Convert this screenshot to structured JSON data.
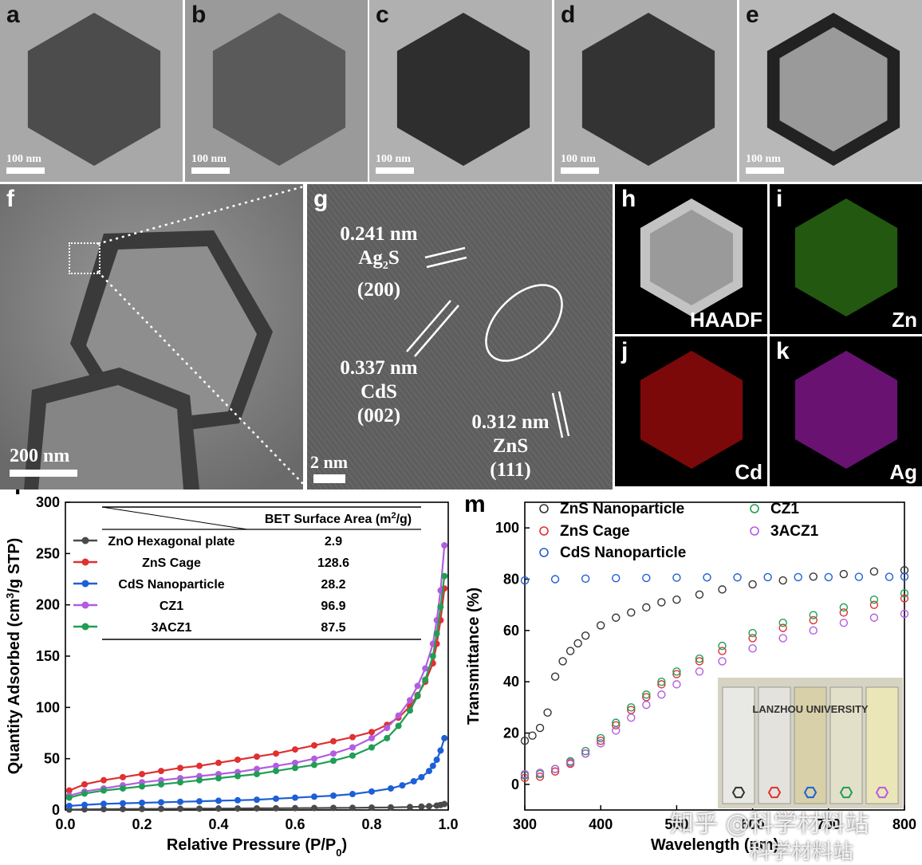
{
  "tem_panels": [
    {
      "letter": "a",
      "scale": "100 nm"
    },
    {
      "letter": "b",
      "scale": "100 nm"
    },
    {
      "letter": "c",
      "scale": "100 nm"
    },
    {
      "letter": "d",
      "scale": "100 nm"
    },
    {
      "letter": "e",
      "scale": "100 nm"
    }
  ],
  "panel_f": {
    "letter": "f",
    "scale": "200 nm"
  },
  "panel_g": {
    "letter": "g",
    "scale": "2 nm",
    "labels": [
      {
        "d": "0.241 nm",
        "phase": "Ag",
        "sub": "2",
        "phase_tail": "S",
        "plane": "(200)"
      },
      {
        "d": "0.337 nm",
        "phase": "CdS",
        "plane": "(002)"
      },
      {
        "d": "0.312 nm",
        "phase": "ZnS",
        "plane": "(111)"
      }
    ]
  },
  "eds_maps": [
    {
      "letter": "h",
      "name": "HAADF",
      "color": "#d8d8d8"
    },
    {
      "letter": "i",
      "name": "Zn",
      "color": "#3fa01e"
    },
    {
      "letter": "j",
      "name": "Cd",
      "color": "#e01010"
    },
    {
      "letter": "k",
      "name": "Ag",
      "color": "#c020d0"
    }
  ],
  "watermark": {
    "line1": "知乎 @科学材料站",
    "line2": "科学材料站"
  },
  "chart_data": [
    {
      "panel": "l",
      "type": "line",
      "xlabel": "Relative Pressure (P/P",
      "xlabel_sub": "0",
      "xlabel_tail": ")",
      "ylabel": "Quantity Adsorbed (cm",
      "ylabel_sup": "3",
      "ylabel_tail": "/g STP)",
      "xlim": [
        0.0,
        1.0
      ],
      "ylim": [
        0,
        300
      ],
      "xticks": [
        "0.0",
        "0.2",
        "0.4",
        "0.6",
        "0.8",
        "1.0"
      ],
      "yticks": [
        "0",
        "50",
        "100",
        "150",
        "200",
        "250",
        "300"
      ],
      "table_header": "BET Surface Area (m",
      "table_header_sup": "2",
      "table_header_tail": "/g)",
      "series": [
        {
          "name": "ZnO Hexagonal plate",
          "bet": "2.9",
          "color": "#4a4a4a",
          "x": [
            0.01,
            0.05,
            0.1,
            0.15,
            0.2,
            0.25,
            0.3,
            0.35,
            0.4,
            0.45,
            0.5,
            0.55,
            0.6,
            0.65,
            0.7,
            0.75,
            0.8,
            0.85,
            0.9,
            0.93,
            0.95,
            0.97,
            0.98,
            0.99
          ],
          "y": [
            0.4,
            0.6,
            0.8,
            0.9,
            1.0,
            1.1,
            1.2,
            1.3,
            1.4,
            1.5,
            1.6,
            1.7,
            1.8,
            1.9,
            2.0,
            2.1,
            2.3,
            2.5,
            2.9,
            3.3,
            3.7,
            4.3,
            4.9,
            5.8
          ]
        },
        {
          "name": "ZnS Cage",
          "bet": "128.6",
          "color": "#e03030",
          "x": [
            0.01,
            0.05,
            0.1,
            0.15,
            0.2,
            0.25,
            0.3,
            0.35,
            0.4,
            0.45,
            0.5,
            0.55,
            0.6,
            0.65,
            0.7,
            0.75,
            0.8,
            0.84,
            0.87,
            0.9,
            0.92,
            0.94,
            0.96,
            0.97,
            0.98,
            0.99
          ],
          "y": [
            19,
            25,
            29,
            32,
            35,
            38,
            41,
            43,
            46,
            49,
            52,
            55,
            59,
            63,
            67,
            71,
            76,
            83,
            90,
            101,
            112,
            125,
            143,
            162,
            185,
            216
          ]
        },
        {
          "name": "CdS Nanoparticle",
          "bet": "28.2",
          "color": "#1d5fd6",
          "x": [
            0.01,
            0.05,
            0.1,
            0.15,
            0.2,
            0.25,
            0.3,
            0.35,
            0.4,
            0.45,
            0.5,
            0.55,
            0.6,
            0.65,
            0.7,
            0.75,
            0.8,
            0.85,
            0.88,
            0.91,
            0.93,
            0.95,
            0.96,
            0.97,
            0.98,
            0.99
          ],
          "y": [
            4,
            5,
            6,
            6.5,
            7,
            7.5,
            8,
            8.5,
            9,
            9.5,
            10,
            11,
            12,
            13,
            14,
            15.5,
            18,
            21,
            24,
            28,
            32,
            38,
            43,
            49,
            58,
            70
          ]
        },
        {
          "name": "CZ1",
          "bet": "96.9",
          "color": "#b25de0",
          "x": [
            0.01,
            0.05,
            0.1,
            0.15,
            0.2,
            0.25,
            0.3,
            0.35,
            0.4,
            0.45,
            0.5,
            0.55,
            0.6,
            0.65,
            0.7,
            0.75,
            0.8,
            0.84,
            0.87,
            0.9,
            0.92,
            0.94,
            0.96,
            0.97,
            0.98,
            0.99
          ],
          "y": [
            14,
            18,
            21,
            24,
            27,
            29,
            31,
            33,
            35,
            37,
            40,
            43,
            46,
            50,
            55,
            61,
            70,
            80,
            92,
            107,
            121,
            138,
            162,
            185,
            214,
            258
          ]
        },
        {
          "name": "3ACZ1",
          "bet": "87.5",
          "color": "#1f9e55",
          "x": [
            0.01,
            0.05,
            0.1,
            0.15,
            0.2,
            0.25,
            0.3,
            0.35,
            0.4,
            0.45,
            0.5,
            0.55,
            0.6,
            0.65,
            0.7,
            0.75,
            0.8,
            0.84,
            0.87,
            0.9,
            0.92,
            0.94,
            0.96,
            0.97,
            0.98,
            0.99
          ],
          "y": [
            12,
            16,
            19,
            21,
            23,
            25,
            27,
            29,
            31,
            33,
            35,
            38,
            41,
            44,
            48,
            53,
            61,
            70,
            82,
            97,
            111,
            127,
            150,
            172,
            198,
            228
          ]
        }
      ]
    },
    {
      "panel": "m",
      "type": "scatter",
      "xlabel": "Wavelength (nm)",
      "ylabel": "Transmittance (%)",
      "xlim": [
        300,
        800
      ],
      "ylim": [
        -10,
        110
      ],
      "xticks": [
        "300",
        "400",
        "500",
        "600",
        "700",
        "800"
      ],
      "yticks": [
        "0",
        "20",
        "40",
        "60",
        "80",
        "100"
      ],
      "inset_caption": "LANZHOU UNIVERSITY",
      "series": [
        {
          "name": "ZnS Nanoparticle",
          "color": "#333333",
          "x": [
            300,
            310,
            320,
            330,
            340,
            350,
            360,
            370,
            380,
            400,
            420,
            440,
            460,
            480,
            500,
            530,
            560,
            600,
            640,
            680,
            720,
            760,
            800
          ],
          "y": [
            17,
            19,
            22,
            28,
            42,
            48,
            52,
            55,
            58,
            62,
            65,
            67,
            69,
            71,
            72,
            74,
            76,
            78,
            79.5,
            81,
            82,
            83,
            83.5
          ]
        },
        {
          "name": "ZnS Cage",
          "color": "#e03030",
          "x": [
            300,
            320,
            340,
            360,
            380,
            400,
            420,
            440,
            460,
            480,
            500,
            530,
            560,
            600,
            640,
            680,
            720,
            760,
            800
          ],
          "y": [
            2.5,
            3,
            5,
            8,
            12,
            17,
            23,
            29,
            34,
            39,
            43,
            48,
            52,
            57,
            61,
            64,
            67,
            70,
            72.5
          ]
        },
        {
          "name": "CdS Nanoparticle",
          "color": "#1d5fd6",
          "x": [
            300,
            340,
            380,
            420,
            460,
            500,
            540,
            580,
            620,
            660,
            700,
            740,
            780,
            800
          ],
          "y": [
            79.5,
            80,
            80.2,
            80.4,
            80.5,
            80.6,
            80.7,
            80.7,
            80.8,
            80.8,
            80.8,
            80.9,
            80.9,
            81
          ]
        },
        {
          "name": "CZ1",
          "color": "#1f9e55",
          "x": [
            300,
            320,
            340,
            360,
            380,
            400,
            420,
            440,
            460,
            480,
            500,
            530,
            560,
            600,
            640,
            680,
            720,
            760,
            800
          ],
          "y": [
            3.5,
            4,
            6,
            9,
            13,
            18,
            24,
            30,
            35,
            40,
            44,
            49,
            54,
            59,
            63,
            66,
            69,
            72,
            74.5
          ]
        },
        {
          "name": "3ACZ1",
          "color": "#b25de0",
          "x": [
            300,
            320,
            340,
            360,
            380,
            400,
            420,
            440,
            460,
            480,
            500,
            530,
            560,
            600,
            640,
            680,
            720,
            760,
            800
          ],
          "y": [
            4,
            4.5,
            6,
            8.5,
            12,
            16,
            21,
            26,
            31,
            35,
            39,
            44,
            48,
            53,
            57,
            60,
            63,
            65,
            66.5
          ]
        }
      ]
    }
  ]
}
